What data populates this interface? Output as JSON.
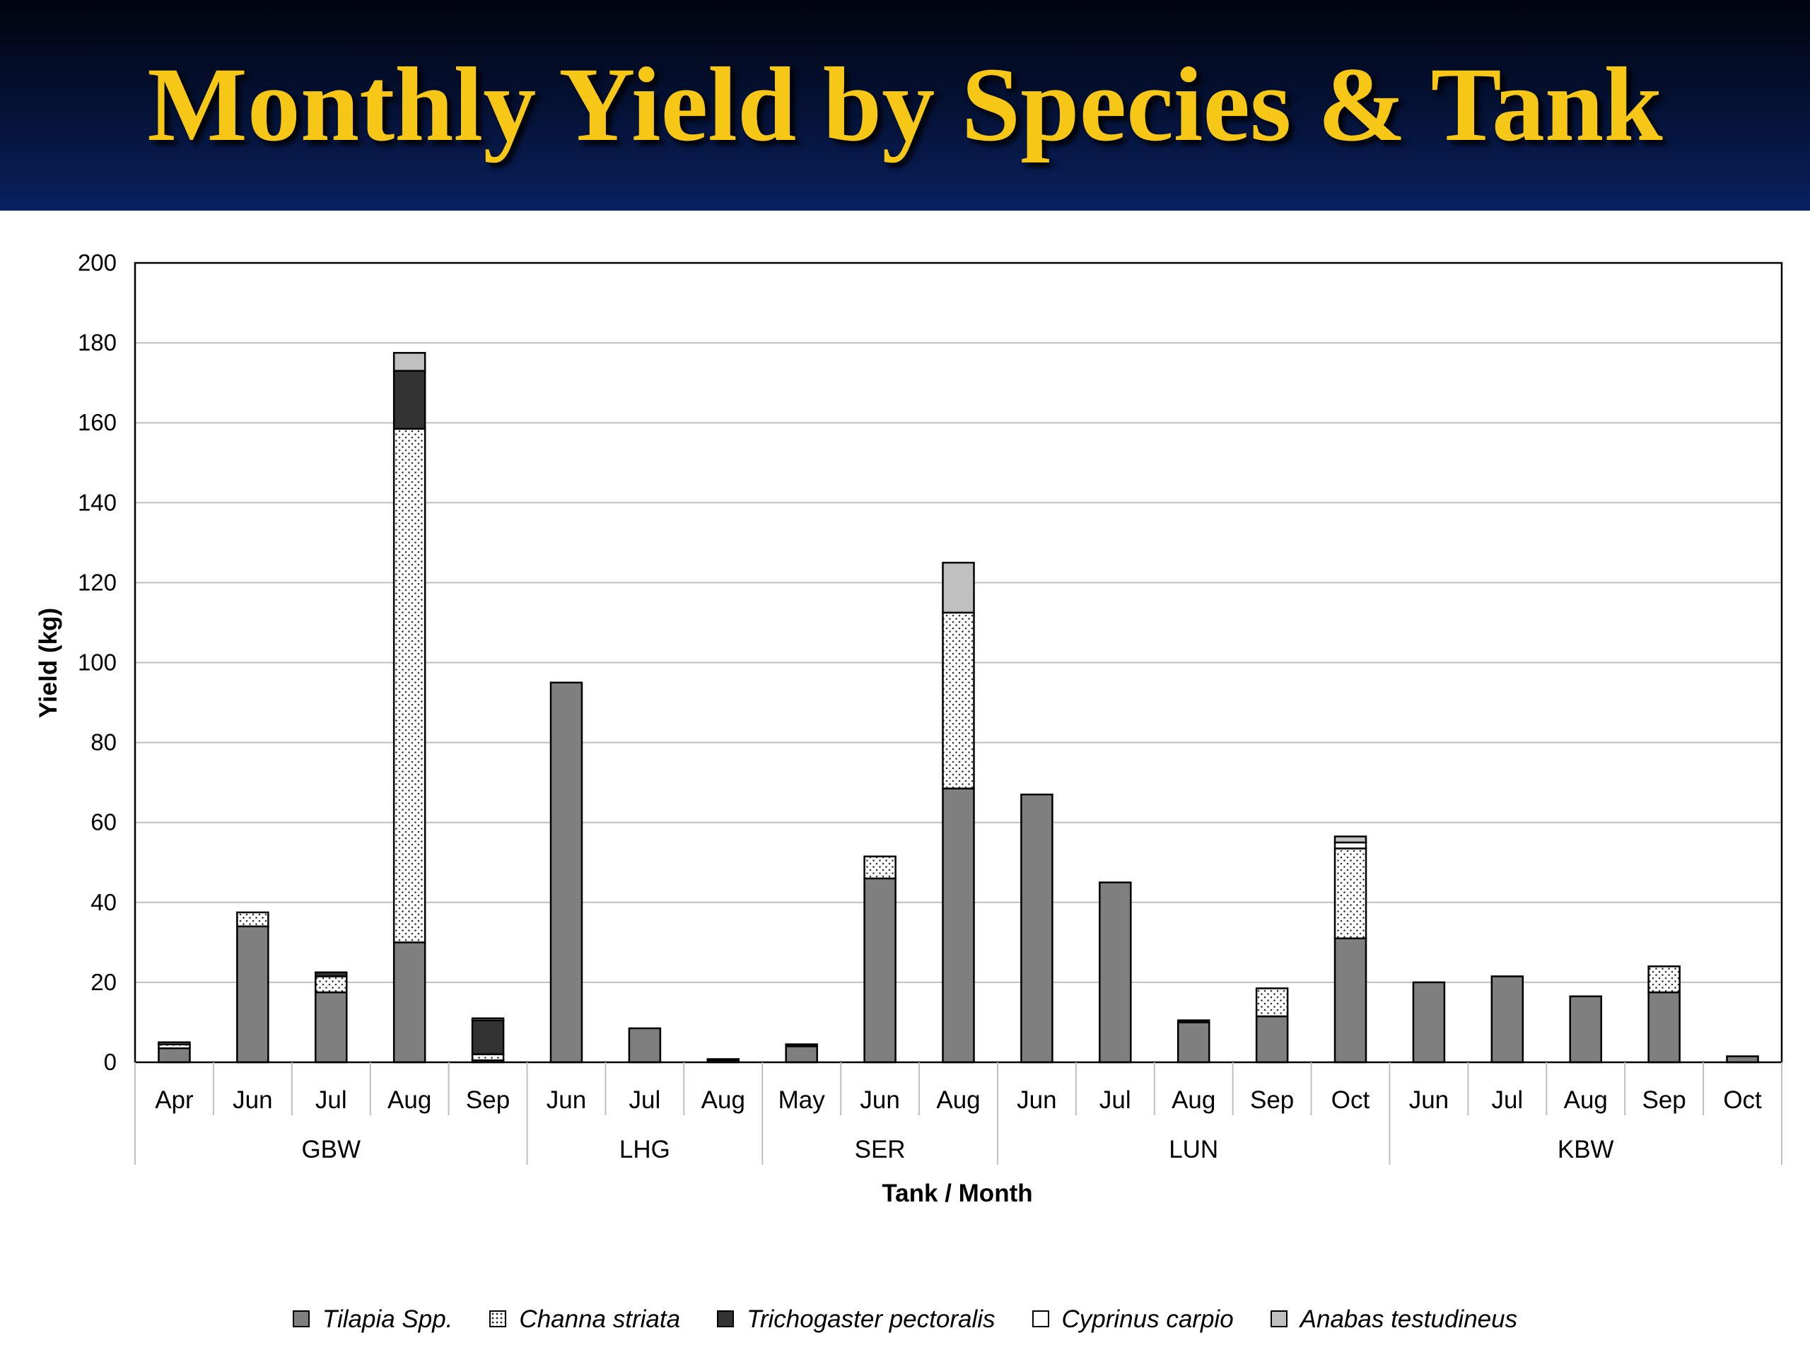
{
  "title": "Monthly Yield by Species & Tank",
  "chart_data": {
    "type": "bar",
    "stacked": true,
    "xlabel": "Tank / Month",
    "ylabel": "Yield (kg)",
    "ylim": [
      0,
      200
    ],
    "yticks": [
      0,
      20,
      40,
      60,
      80,
      100,
      120,
      140,
      160,
      180,
      200
    ],
    "grid": true,
    "legend_position": "bottom",
    "groups": [
      {
        "name": "GBW",
        "months": [
          "Apr",
          "Jun",
          "Jul",
          "Aug",
          "Sep"
        ]
      },
      {
        "name": "LHG",
        "months": [
          "Jun",
          "Jul",
          "Aug"
        ]
      },
      {
        "name": "SER",
        "months": [
          "May",
          "Jun",
          "Aug"
        ]
      },
      {
        "name": "LUN",
        "months": [
          "Jun",
          "Jul",
          "Aug",
          "Sep",
          "Oct"
        ]
      },
      {
        "name": "KBW",
        "months": [
          "Jun",
          "Jul",
          "Aug",
          "Sep",
          "Oct"
        ]
      }
    ],
    "series": [
      {
        "name": "Tilapia Spp.",
        "color": "#7f7f7f",
        "pattern": "solid",
        "values": [
          3.5,
          34,
          17.5,
          30,
          0.5,
          95,
          8.5,
          0.5,
          4,
          46,
          68.5,
          67,
          45,
          10,
          11.5,
          31,
          20,
          21.5,
          16.5,
          17.5,
          1.5
        ]
      },
      {
        "name": "Channa striata",
        "color": "#ffffff",
        "pattern": "dots",
        "values": [
          1,
          3.5,
          4,
          128.5,
          1.5,
          0,
          0,
          0,
          0,
          5.5,
          44,
          0,
          0,
          0,
          7,
          22.5,
          0,
          0,
          0,
          6.5,
          0
        ]
      },
      {
        "name": "Trichogaster pectoralis",
        "color": "#333333",
        "pattern": "solid",
        "values": [
          0,
          0,
          1,
          14.5,
          8.5,
          0,
          0,
          0.3,
          0.5,
          0,
          0,
          0,
          0,
          0.5,
          0,
          0,
          0,
          0,
          0,
          0,
          0
        ]
      },
      {
        "name": "Cyprinus carpio",
        "color": "#ffffff",
        "pattern": "solid",
        "values": [
          0.5,
          0,
          0,
          0,
          0.5,
          0,
          0,
          0,
          0,
          0,
          0,
          0,
          0,
          0,
          0,
          1.5,
          0,
          0,
          0,
          0,
          0
        ]
      },
      {
        "name": "Anabas testudineus",
        "color": "#c0c0c0",
        "pattern": "solid",
        "values": [
          0,
          0,
          0,
          4.5,
          0,
          0,
          0,
          0,
          0,
          0,
          12.5,
          0,
          0,
          0,
          0,
          1.5,
          0,
          0,
          0,
          0,
          0
        ]
      }
    ]
  }
}
